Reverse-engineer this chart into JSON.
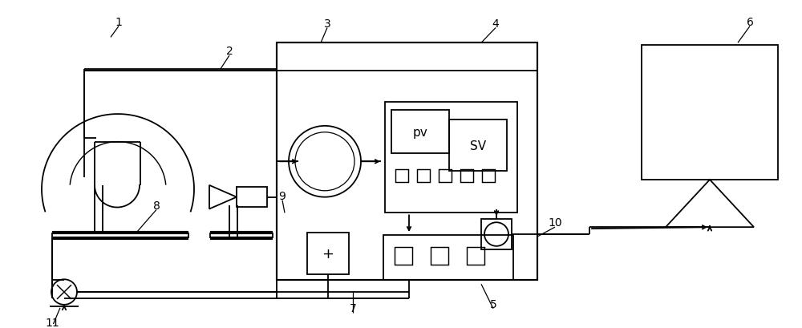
{
  "bg_color": "#ffffff",
  "line_color": "#000000",
  "lw": 1.3,
  "fig_width": 10.0,
  "fig_height": 4.1,
  "xlim": [
    0,
    1000
  ],
  "ylim": [
    0,
    410
  ]
}
